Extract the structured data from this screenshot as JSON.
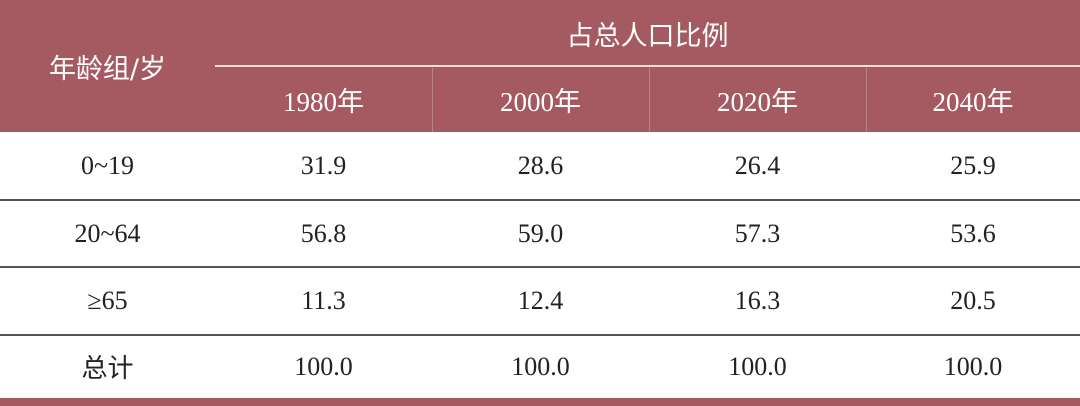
{
  "table": {
    "header": {
      "group_label": "年龄组/岁",
      "span_label": "占总人口比例",
      "years": [
        "1980年",
        "2000年",
        "2020年",
        "2040年"
      ]
    },
    "rows": [
      [
        "0~19",
        "31.9",
        "28.6",
        "26.4",
        "25.9"
      ],
      [
        "20~64",
        "56.8",
        "59.0",
        "57.3",
        "53.6"
      ],
      [
        "≥65",
        "11.3",
        "12.4",
        "16.3",
        "20.5"
      ],
      [
        "总计",
        "100.0",
        "100.0",
        "100.0",
        "100.0"
      ]
    ]
  }
}
